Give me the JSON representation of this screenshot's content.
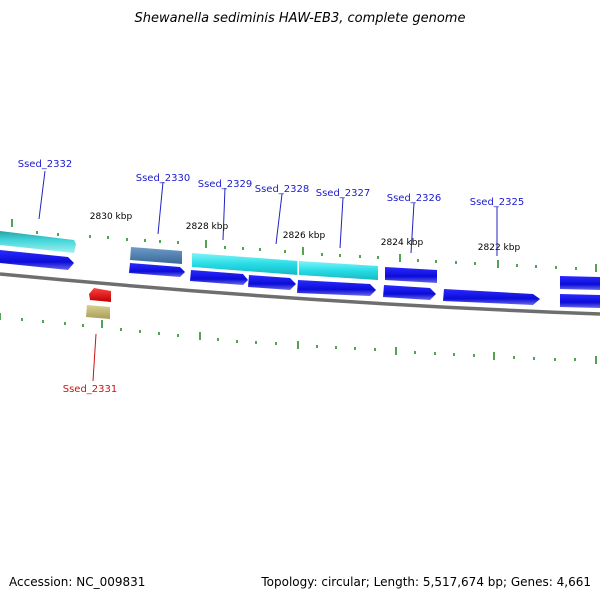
{
  "title": "Shewanella sediminis HAW-EB3, complete genome",
  "footer": {
    "accession": "Accession: NC_009831",
    "topology": "Topology: circular; Length: 5,517,674 bp; Genes: 4,661"
  },
  "kbp_labels": [
    "2830 kbp",
    "2828 kbp",
    "2826 kbp",
    "2824 kbp",
    "2822 kbp"
  ],
  "gene_labels": [
    "Ssed_2332",
    "Ssed_2330",
    "Ssed_2329",
    "Ssed_2328",
    "Ssed_2327",
    "Ssed_2326",
    "Ssed_2325",
    "Ssed_2331"
  ],
  "colors": {
    "cds_blue": "#1010e0",
    "cyan_feature": "#30e0e8",
    "teal_feature": "#40c8c8",
    "steel_feature": "#4a7fb0",
    "red_feature": "#e01010",
    "khaki_feature": "#c0b870",
    "tick_green": "#2a8a2a",
    "backbone": "#808080",
    "label_blue": "#1a1ad0",
    "label_red": "#d01010"
  }
}
